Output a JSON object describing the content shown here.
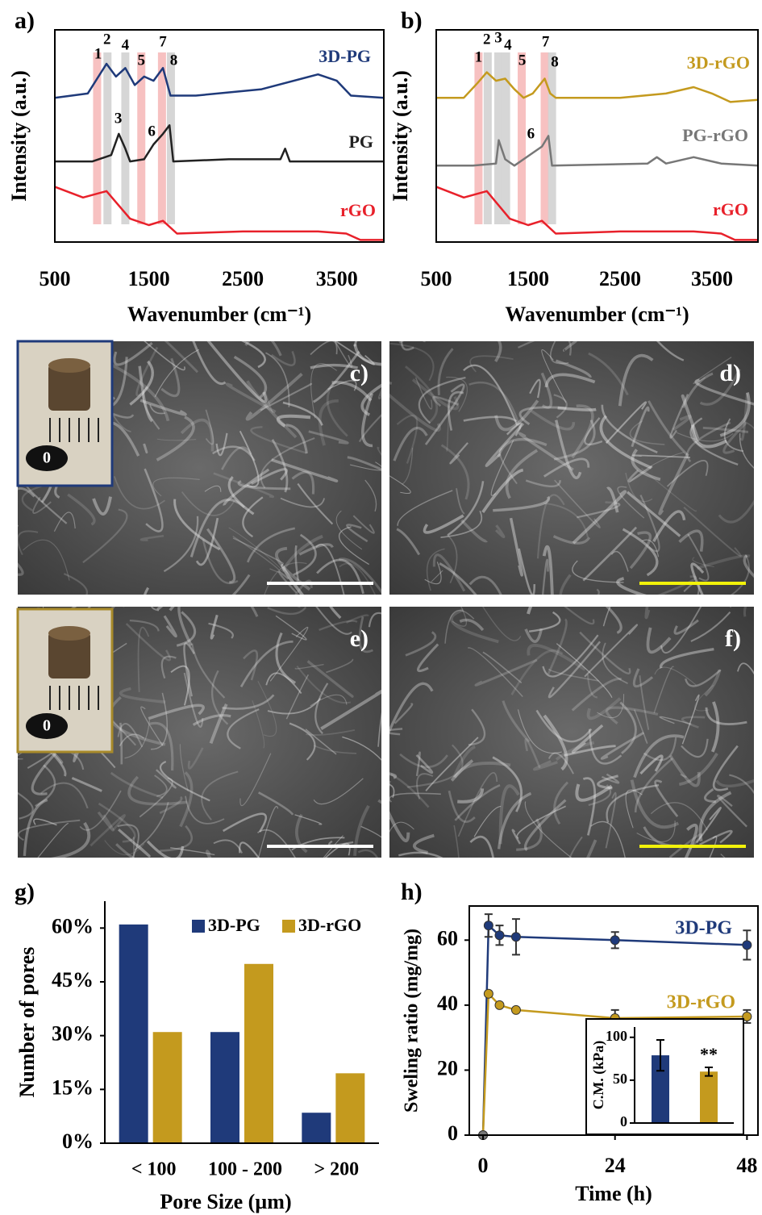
{
  "chart_data": [
    {
      "type": "spectrum",
      "label": "a)",
      "xlabel": "Wavenumber (cm⁻¹)",
      "ylabel": "Intensity (a.u.)",
      "xlim": [
        500,
        4000
      ],
      "xticks": [
        500,
        1500,
        2500,
        3500
      ],
      "ylim": [
        0,
        100
      ],
      "bands": [
        {
          "x": 950,
          "color": "#f6b6b6"
        },
        {
          "x": 1060,
          "color": "#cfcfcf"
        },
        {
          "x": 1250,
          "color": "#cfcfcf"
        },
        {
          "x": 1420,
          "color": "#f6b6b6"
        },
        {
          "x": 1640,
          "color": "#f6b6b6"
        },
        {
          "x": 1735,
          "color": "#cfcfcf"
        }
      ],
      "peaks": [
        {
          "label": "1",
          "x": 960
        },
        {
          "label": "2",
          "x": 1055
        },
        {
          "label": "3",
          "x": 1175
        },
        {
          "label": "4",
          "x": 1250
        },
        {
          "label": "5",
          "x": 1420
        },
        {
          "label": "6",
          "x": 1530
        },
        {
          "label": "7",
          "x": 1650
        },
        {
          "label": "8",
          "x": 1765
        }
      ],
      "series": [
        {
          "name": "3D-PG",
          "color": "#1f3a7a",
          "x": [
            500,
            850,
            1050,
            1150,
            1250,
            1350,
            1450,
            1550,
            1650,
            1730,
            2000,
            2700,
            3300,
            3500,
            3650,
            4000
          ],
          "values": [
            68,
            70,
            84,
            78,
            82,
            74,
            78,
            76,
            82,
            69,
            69,
            72,
            79,
            76,
            69,
            68
          ]
        },
        {
          "name": "PG",
          "color": "#222222",
          "x": [
            500,
            900,
            1100,
            1180,
            1250,
            1300,
            1450,
            1550,
            1650,
            1720,
            1760,
            2350,
            2900,
            2950,
            3000,
            4000
          ],
          "values": [
            38,
            38,
            41,
            51,
            44,
            38,
            39,
            46,
            51,
            55,
            38,
            39,
            39,
            44,
            38,
            38
          ]
        },
        {
          "name": "rGO",
          "color": "#e8202a",
          "x": [
            500,
            800,
            1050,
            1300,
            1500,
            1650,
            1800,
            2500,
            3300,
            3600,
            3750,
            4000
          ],
          "values": [
            26,
            21,
            24,
            11,
            8,
            10,
            4,
            5,
            5,
            4,
            1,
            1
          ]
        }
      ]
    },
    {
      "type": "spectrum",
      "label": "b)",
      "xlabel": "Wavenumber (cm⁻¹)",
      "ylabel": "Intensity (a.u.)",
      "xlim": [
        500,
        4000
      ],
      "xticks": [
        500,
        1500,
        2500,
        3500
      ],
      "ylim": [
        0,
        100
      ],
      "bands": [
        {
          "x": 960,
          "color": "#f6b6b6"
        },
        {
          "x": 1060,
          "color": "#cfcfcf"
        },
        {
          "x": 1175,
          "color": "#cfcfcf"
        },
        {
          "x": 1260,
          "color": "#cfcfcf"
        },
        {
          "x": 1430,
          "color": "#f6b6b6"
        },
        {
          "x": 1680,
          "color": "#f6b6b6"
        },
        {
          "x": 1760,
          "color": "#cfcfcf"
        }
      ],
      "peaks": [
        {
          "label": "1",
          "x": 960
        },
        {
          "label": "2",
          "x": 1050
        },
        {
          "label": "3",
          "x": 1175
        },
        {
          "label": "4",
          "x": 1280
        },
        {
          "label": "5",
          "x": 1435
        },
        {
          "label": "6",
          "x": 1530
        },
        {
          "label": "7",
          "x": 1690
        },
        {
          "label": "8",
          "x": 1790
        }
      ],
      "series": [
        {
          "name": "3D-rGO",
          "color": "#c49a1e",
          "x": [
            500,
            800,
            950,
            1050,
            1150,
            1250,
            1350,
            1450,
            1550,
            1680,
            1740,
            1800,
            2500,
            3000,
            3300,
            3500,
            3700,
            4000
          ],
          "values": [
            68,
            68,
            75,
            80,
            76,
            77,
            72,
            68,
            70,
            77,
            70,
            68,
            68,
            70,
            73,
            70,
            66,
            67
          ]
        },
        {
          "name": "PG-rGO",
          "color": "#777777",
          "x": [
            500,
            900,
            1150,
            1180,
            1250,
            1350,
            1550,
            1650,
            1720,
            1760,
            2800,
            2900,
            3000,
            3300,
            3600,
            4000
          ],
          "values": [
            36,
            36,
            37,
            48,
            39,
            36,
            42,
            45,
            50,
            36,
            37,
            40,
            37,
            40,
            37,
            36
          ]
        },
        {
          "name": "rGO",
          "color": "#e8202a",
          "x": [
            500,
            800,
            1050,
            1300,
            1500,
            1650,
            1800,
            2500,
            3300,
            3600,
            3750,
            4000
          ],
          "values": [
            26,
            21,
            24,
            11,
            8,
            10,
            4,
            5,
            5,
            4,
            1,
            1
          ]
        }
      ]
    },
    {
      "type": "bar",
      "label": "g)",
      "xlabel": "Pore Size (µm)",
      "ylabel": "Number of pores",
      "categories": [
        "< 100",
        "100 - 200",
        "> 200"
      ],
      "ylim": [
        0,
        67.5
      ],
      "yticks": [
        {
          "value": 0,
          "label": "0%"
        },
        {
          "value": 15,
          "label": "15%"
        },
        {
          "value": 30,
          "label": "30%"
        },
        {
          "value": 45,
          "label": "45%"
        },
        {
          "value": 60,
          "label": "60%"
        }
      ],
      "legend": "upper right",
      "series": [
        {
          "name": "3D-PG",
          "color": "#1f3a7a",
          "values": [
            61,
            31,
            8.5
          ]
        },
        {
          "name": "3D-rGO",
          "color": "#c49a1e",
          "values": [
            31,
            50,
            19.5
          ]
        }
      ]
    },
    {
      "type": "errorline",
      "label": "h)",
      "xlabel": "Time (h)",
      "ylabel": "Sweling ratio (mg/mg)",
      "xlim": [
        -2.5,
        50
      ],
      "xticks": [
        0,
        24,
        48
      ],
      "ylim": [
        0,
        70.5
      ],
      "yticks": [
        0,
        20,
        40,
        60
      ],
      "series": [
        {
          "name": "3D-PG",
          "color": "#1f3a7a",
          "x": [
            0,
            1,
            3,
            6,
            24,
            48
          ],
          "values": [
            0,
            64.5,
            61.5,
            61,
            60,
            58.5
          ],
          "errors": [
            null,
            3.5,
            3,
            5.5,
            2.5,
            4.5
          ]
        },
        {
          "name": "3D-rGO",
          "color": "#c49a1e",
          "x": [
            0,
            1,
            3,
            6,
            24,
            48
          ],
          "values": [
            0,
            43.5,
            40,
            38.5,
            36,
            36.5
          ],
          "errors": [
            null,
            0.5,
            0.5,
            0.5,
            2.5,
            2
          ]
        }
      ]
    },
    {
      "type": "errorbar",
      "ylabel": "C.M. (kPa)",
      "ylim": [
        0,
        112
      ],
      "yticks": [
        0,
        50,
        100
      ],
      "values": [
        79,
        60
      ],
      "errors": [
        18,
        5
      ],
      "colors": [
        "#1f3a7a",
        "#c49a1e"
      ],
      "annotation": "**"
    }
  ],
  "images": [
    {
      "label": "c)",
      "inset_text": "0",
      "scale_color": "#ffffff",
      "inset_border": "#1f3a7a"
    },
    {
      "label": "d)",
      "scale_color": "#f2f20a"
    },
    {
      "label": "e)",
      "inset_text": "0",
      "scale_color": "#ffffff",
      "inset_border": "#a88a2a"
    },
    {
      "label": "f)",
      "scale_color": "#f2f20a"
    }
  ]
}
